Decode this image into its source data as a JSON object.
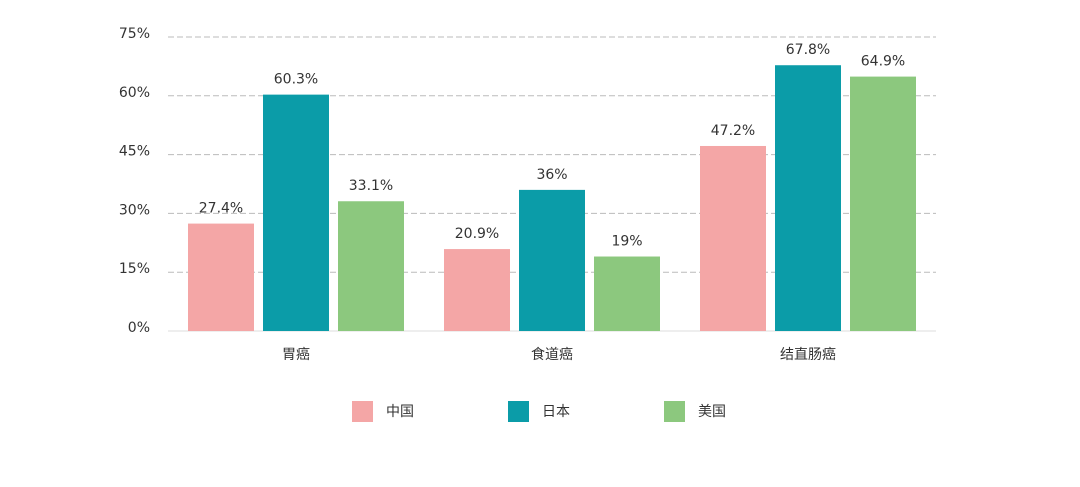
{
  "chart_data": {
    "type": "bar",
    "categories": [
      "胃癌",
      "食道癌",
      "结直肠癌"
    ],
    "series": [
      {
        "name": "中国",
        "color": "#f4a6a6",
        "values": [
          27.4,
          20.9,
          47.2
        ],
        "value_labels": [
          "27.4%",
          "20.9%",
          "47.2%"
        ]
      },
      {
        "name": "日本",
        "color": "#0b9ca8",
        "values": [
          60.3,
          36,
          67.8
        ],
        "value_labels": [
          "60.3%",
          "36%",
          "67.8%"
        ]
      },
      {
        "name": "美国",
        "color": "#8cc87e",
        "values": [
          33.1,
          19,
          64.9
        ],
        "value_labels": [
          "33.1%",
          "19%",
          "64.9%"
        ]
      }
    ],
    "ylim": [
      0,
      75
    ],
    "yticks": [
      {
        "value": 0,
        "label": "0%"
      },
      {
        "value": 15,
        "label": "15%"
      },
      {
        "value": 30,
        "label": "30%"
      },
      {
        "value": 45,
        "label": "45%"
      },
      {
        "value": 60,
        "label": "60%"
      },
      {
        "value": 75,
        "label": "75%"
      }
    ],
    "grid": true
  }
}
